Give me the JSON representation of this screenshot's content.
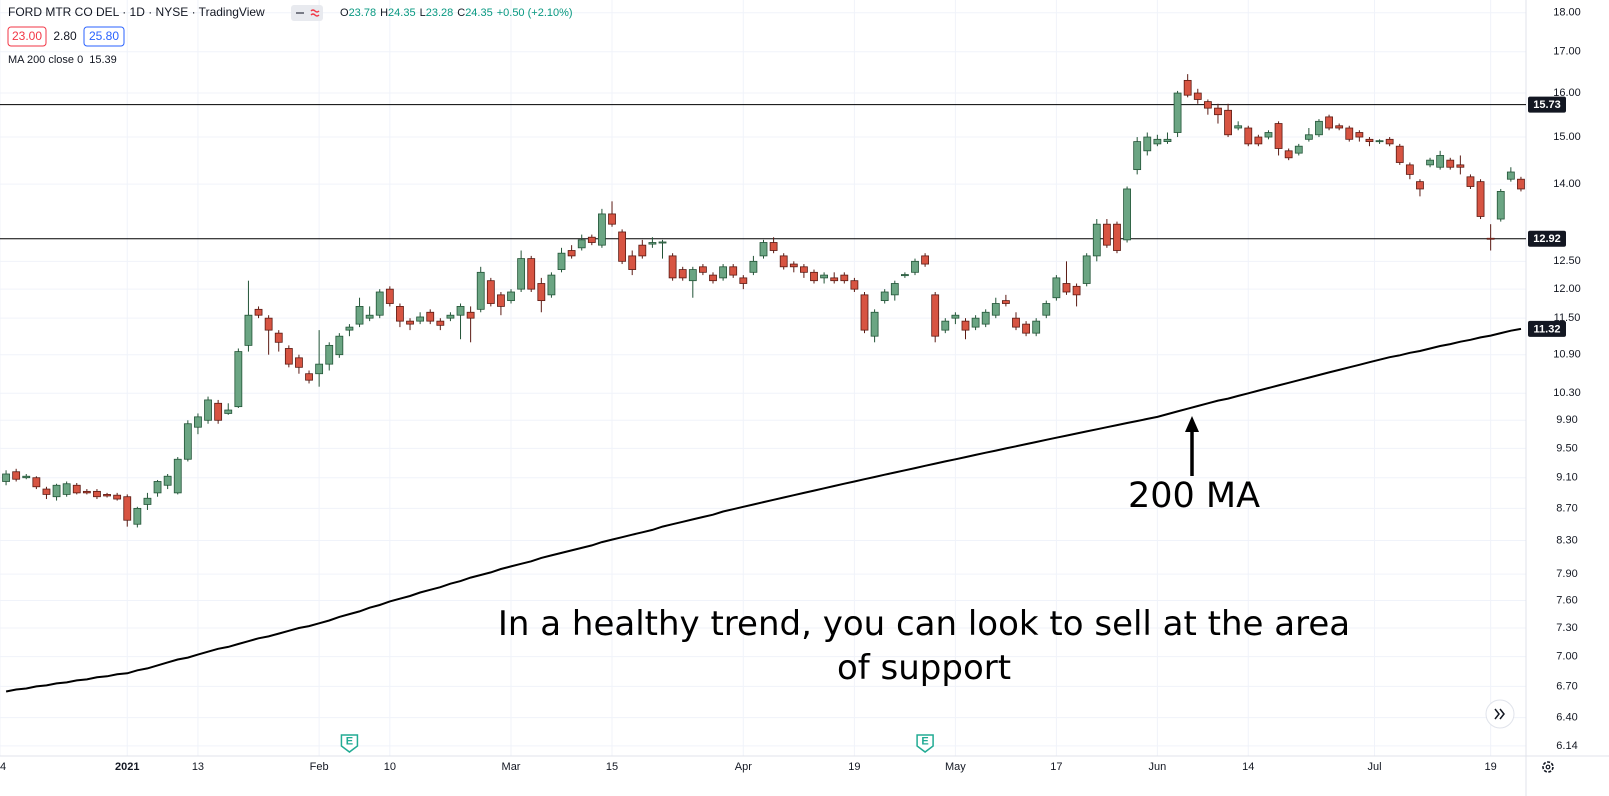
{
  "chart_data": {
    "type": "candlestick",
    "title": "FORD MTR CO DEL · 1D · NYSE · TradingView",
    "ohlc_legend": [
      {
        "key": "O",
        "value": "23.78"
      },
      {
        "key": "H",
        "value": "24.35"
      },
      {
        "key": "L",
        "value": "23.28"
      },
      {
        "key": "C",
        "value": "24.35"
      }
    ],
    "change": "+0.50 (+2.10%)",
    "quote_boxes": [
      "23.00",
      "2.80",
      "25.80"
    ],
    "indicator": {
      "name": "MA 200 close 0",
      "value_label": "15.39"
    },
    "log_scale": true,
    "grid": true,
    "ylim": [
      6.05,
      18.34
    ],
    "yticks": [
      {
        "value": 18,
        "label": "18.00"
      },
      {
        "value": 17,
        "label": "17.00"
      },
      {
        "value": 16,
        "label": "16.00"
      },
      {
        "value": 15,
        "label": "15.00"
      },
      {
        "value": 14,
        "label": "14.00"
      },
      {
        "value": 12.5,
        "label": "12.50"
      },
      {
        "value": 12,
        "label": "12.00"
      },
      {
        "value": 11.5,
        "label": "11.50"
      },
      {
        "value": 10.9,
        "label": "10.90"
      },
      {
        "value": 10.3,
        "label": "10.30"
      },
      {
        "value": 9.9,
        "label": "9.90"
      },
      {
        "value": 9.5,
        "label": "9.50"
      },
      {
        "value": 9.1,
        "label": "9.10"
      },
      {
        "value": 8.7,
        "label": "8.70"
      },
      {
        "value": 8.3,
        "label": "8.30"
      },
      {
        "value": 7.9,
        "label": "7.90"
      },
      {
        "value": 7.6,
        "label": "7.60"
      },
      {
        "value": 7.3,
        "label": "7.30"
      },
      {
        "value": 7,
        "label": "7.00"
      },
      {
        "value": 6.7,
        "label": "6.70"
      },
      {
        "value": 6.4,
        "label": "6.40"
      },
      6.14
    ],
    "xlim": [
      -0.6,
      150.5
    ],
    "xticks": [
      {
        "value": -0.6,
        "label": "4"
      },
      {
        "value": 12,
        "label": "2021"
      },
      {
        "value": 19,
        "label": "13"
      },
      {
        "value": 31,
        "label": "Feb"
      },
      {
        "value": 38,
        "label": "10"
      },
      {
        "value": 50,
        "label": "Mar"
      },
      {
        "value": 60,
        "label": "15"
      },
      {
        "value": 73,
        "label": "Apr"
      },
      {
        "value": 84,
        "label": "19"
      },
      {
        "value": 94,
        "label": "May"
      },
      {
        "value": 104,
        "label": "17"
      },
      {
        "value": 114,
        "label": "Jun"
      },
      {
        "value": 123,
        "label": "14"
      },
      {
        "value": 135.5,
        "label": "Jul"
      },
      {
        "value": 147,
        "label": "19"
      }
    ],
    "up_color": "#6ba583",
    "down_color": "#d75442",
    "candles": {
      "open": [
        9.05,
        9.18,
        9.1,
        9.1,
        8.95,
        8.85,
        8.88,
        9.0,
        8.92,
        8.92,
        8.88,
        8.87,
        8.85,
        8.5,
        8.75,
        8.9,
        9.0,
        8.9,
        9.35,
        9.8,
        9.9,
        10.15,
        10.0,
        10.1,
        11.05,
        11.65,
        11.5,
        11.25,
        11.0,
        10.85,
        10.6,
        10.6,
        10.75,
        10.9,
        11.3,
        11.4,
        11.5,
        11.55,
        12.0,
        11.7,
        11.45,
        11.45,
        11.6,
        11.45,
        11.5,
        11.55,
        11.6,
        11.65,
        12.15,
        11.9,
        11.8,
        12.0,
        12.55,
        12.1,
        11.9,
        12.35,
        12.7,
        12.75,
        12.95,
        12.8,
        13.4,
        13.05,
        12.6,
        12.8,
        12.82,
        12.84,
        12.6,
        12.35,
        12.15,
        12.4,
        12.25,
        12.2,
        12.4,
        12.2,
        12.3,
        12.6,
        12.85,
        12.6,
        12.45,
        12.4,
        12.3,
        12.2,
        12.2,
        12.25,
        12.15,
        11.9,
        11.2,
        11.8,
        11.9,
        12.24,
        12.3,
        12.6,
        11.9,
        11.3,
        11.5,
        11.45,
        11.35,
        11.4,
        11.55,
        11.8,
        11.5,
        11.4,
        11.25,
        11.55,
        11.85,
        12.1,
        12.05,
        12.1,
        12.6,
        13.2,
        13.2,
        12.9,
        14.3,
        14.7,
        14.85,
        14.9,
        15.1,
        16.3,
        16.0,
        15.8,
        15.65,
        15.6,
        15.2,
        15.2,
        15.0,
        15.0,
        15.3,
        14.7,
        14.65,
        14.95,
        15.05,
        15.45,
        15.25,
        15.2,
        15.1,
        14.95,
        14.9,
        14.95,
        14.8,
        14.4,
        14.05,
        14.4,
        14.35,
        14.5,
        14.4,
        14.15,
        14.05,
        12.93,
        13.3,
        14.1,
        14.1
      ],
      "high": [
        9.2,
        9.22,
        9.15,
        9.12,
        8.98,
        9.02,
        9.05,
        9.03,
        8.95,
        8.95,
        8.9,
        8.9,
        8.88,
        8.72,
        8.9,
        9.07,
        9.15,
        9.38,
        9.9,
        10.0,
        10.25,
        10.2,
        10.15,
        11.0,
        12.15,
        11.7,
        11.55,
        11.3,
        11.05,
        10.9,
        10.65,
        11.3,
        11.1,
        11.25,
        11.4,
        11.85,
        11.7,
        12.0,
        12.05,
        11.75,
        11.5,
        11.6,
        11.65,
        11.5,
        11.6,
        11.75,
        11.7,
        12.4,
        12.2,
        11.95,
        12.0,
        12.7,
        12.6,
        12.2,
        12.3,
        12.75,
        12.8,
        13.0,
        13.0,
        13.5,
        13.65,
        13.1,
        12.7,
        12.9,
        12.95,
        12.9,
        12.65,
        12.4,
        12.4,
        12.45,
        12.3,
        12.45,
        12.45,
        12.25,
        12.6,
        12.9,
        12.95,
        12.65,
        12.5,
        12.45,
        12.35,
        12.3,
        12.3,
        12.3,
        12.2,
        11.95,
        11.65,
        12.0,
        12.15,
        12.3,
        12.55,
        12.65,
        11.95,
        11.5,
        11.6,
        11.5,
        11.55,
        11.65,
        11.85,
        11.9,
        11.6,
        11.45,
        11.5,
        11.8,
        12.25,
        12.5,
        12.1,
        12.65,
        13.3,
        13.3,
        13.25,
        13.95,
        15.0,
        15.1,
        15.05,
        15.1,
        16.05,
        16.45,
        16.1,
        15.85,
        15.75,
        15.75,
        15.35,
        15.25,
        15.05,
        15.15,
        15.35,
        14.75,
        14.85,
        15.2,
        15.4,
        15.5,
        15.3,
        15.25,
        15.15,
        15.0,
        14.95,
        15.0,
        14.85,
        14.45,
        14.1,
        14.55,
        14.7,
        14.55,
        14.6,
        14.2,
        14.1,
        13.2,
        13.9,
        14.35,
        14.15
      ],
      "low": [
        9.0,
        9.05,
        9.08,
        8.95,
        8.82,
        8.8,
        8.85,
        8.88,
        8.88,
        8.82,
        8.84,
        8.8,
        8.47,
        8.46,
        8.68,
        8.85,
        8.95,
        8.88,
        9.32,
        9.7,
        9.85,
        9.85,
        9.98,
        10.08,
        10.95,
        11.5,
        10.9,
        10.95,
        10.7,
        10.6,
        10.45,
        10.4,
        10.65,
        10.85,
        11.2,
        11.35,
        11.45,
        11.5,
        11.7,
        11.35,
        11.3,
        11.4,
        11.4,
        11.3,
        11.45,
        11.15,
        11.1,
        11.6,
        11.7,
        11.55,
        11.75,
        11.95,
        11.95,
        11.6,
        11.85,
        12.3,
        12.55,
        12.7,
        12.8,
        12.75,
        13.15,
        12.45,
        12.25,
        12.55,
        12.75,
        12.55,
        12.15,
        12.15,
        11.85,
        12.25,
        12.1,
        12.15,
        12.2,
        12.0,
        12.25,
        12.55,
        12.65,
        12.35,
        12.3,
        12.2,
        12.1,
        12.1,
        12.1,
        12.1,
        11.95,
        11.25,
        11.1,
        11.75,
        11.8,
        12.2,
        12.25,
        12.4,
        11.1,
        11.25,
        11.4,
        11.15,
        11.3,
        11.35,
        11.5,
        11.7,
        11.3,
        11.2,
        11.2,
        11.5,
        11.8,
        11.9,
        11.7,
        12.05,
        12.5,
        12.75,
        12.65,
        12.85,
        14.2,
        14.6,
        14.8,
        14.85,
        15.0,
        15.9,
        15.75,
        15.5,
        15.3,
        15.0,
        15.15,
        14.8,
        14.8,
        14.95,
        14.6,
        14.5,
        14.6,
        14.9,
        15.0,
        15.15,
        15.15,
        14.9,
        14.9,
        14.8,
        14.85,
        14.8,
        14.4,
        14.1,
        13.75,
        14.35,
        14.3,
        14.3,
        14.2,
        13.9,
        13.3,
        12.7,
        13.25,
        14.05,
        13.85
      ],
      "close": [
        9.15,
        9.08,
        9.12,
        8.98,
        8.88,
        9.0,
        9.02,
        8.9,
        8.9,
        8.85,
        8.86,
        8.82,
        8.55,
        8.7,
        8.83,
        9.05,
        9.12,
        9.35,
        9.85,
        9.95,
        10.2,
        9.9,
        10.05,
        10.95,
        11.55,
        11.55,
        11.3,
        11.1,
        10.75,
        10.7,
        10.5,
        10.75,
        11.05,
        11.2,
        11.35,
        11.7,
        11.55,
        11.95,
        11.75,
        11.45,
        11.4,
        11.52,
        11.45,
        11.38,
        11.55,
        11.7,
        11.5,
        12.3,
        11.75,
        11.7,
        11.95,
        12.55,
        12.0,
        11.8,
        12.25,
        12.65,
        12.6,
        12.9,
        12.85,
        13.4,
        13.2,
        12.5,
        12.35,
        12.6,
        12.85,
        12.86,
        12.2,
        12.2,
        12.35,
        12.3,
        12.15,
        12.4,
        12.25,
        12.1,
        12.5,
        12.85,
        12.7,
        12.4,
        12.4,
        12.3,
        12.15,
        12.25,
        12.15,
        12.15,
        12.0,
        11.3,
        11.6,
        11.95,
        12.1,
        12.26,
        12.5,
        12.45,
        11.2,
        11.45,
        11.55,
        11.3,
        11.5,
        11.6,
        11.75,
        11.75,
        11.35,
        11.25,
        11.45,
        11.75,
        12.2,
        11.95,
        11.9,
        12.6,
        13.2,
        12.8,
        12.7,
        13.9,
        14.9,
        15.0,
        14.95,
        14.95,
        16.0,
        15.95,
        15.85,
        15.65,
        15.5,
        15.05,
        15.25,
        14.85,
        14.85,
        15.1,
        14.75,
        14.55,
        14.8,
        15.05,
        15.35,
        15.2,
        15.2,
        14.95,
        15.0,
        14.9,
        14.92,
        14.85,
        14.45,
        14.2,
        13.9,
        14.5,
        14.6,
        14.35,
        14.35,
        13.95,
        13.35,
        12.92,
        13.85,
        14.25,
        13.9
      ]
    },
    "ma": {
      "color": "#000000",
      "values": [
        6.65,
        6.67,
        6.68,
        6.7,
        6.71,
        6.73,
        6.74,
        6.76,
        6.77,
        6.79,
        6.8,
        6.82,
        6.83,
        6.86,
        6.88,
        6.91,
        6.94,
        6.97,
        6.99,
        7.02,
        7.05,
        7.08,
        7.1,
        7.13,
        7.16,
        7.19,
        7.21,
        7.24,
        7.27,
        7.3,
        7.32,
        7.35,
        7.38,
        7.42,
        7.45,
        7.48,
        7.52,
        7.55,
        7.59,
        7.62,
        7.65,
        7.69,
        7.72,
        7.75,
        7.79,
        7.82,
        7.86,
        7.89,
        7.92,
        7.96,
        7.99,
        8.02,
        8.05,
        8.09,
        8.12,
        8.15,
        8.18,
        8.21,
        8.24,
        8.28,
        8.31,
        8.34,
        8.37,
        8.4,
        8.43,
        8.47,
        8.5,
        8.53,
        8.56,
        8.59,
        8.62,
        8.66,
        8.69,
        8.72,
        8.75,
        8.78,
        8.81,
        8.84,
        8.87,
        8.9,
        8.93,
        8.96,
        8.99,
        9.02,
        9.05,
        9.08,
        9.11,
        9.14,
        9.17,
        9.2,
        9.23,
        9.26,
        9.29,
        9.32,
        9.35,
        9.38,
        9.41,
        9.44,
        9.47,
        9.5,
        9.53,
        9.56,
        9.59,
        9.62,
        9.65,
        9.68,
        9.71,
        9.74,
        9.77,
        9.8,
        9.83,
        9.86,
        9.89,
        9.92,
        9.95,
        9.99,
        10.03,
        10.07,
        10.11,
        10.15,
        10.19,
        10.22,
        10.26,
        10.3,
        10.34,
        10.38,
        10.42,
        10.46,
        10.5,
        10.54,
        10.58,
        10.62,
        10.66,
        10.7,
        10.74,
        10.78,
        10.82,
        10.86,
        10.89,
        10.93,
        10.96,
        11.0,
        11.04,
        11.07,
        11.11,
        11.14,
        11.18,
        11.21,
        11.25,
        11.29,
        11.32
      ]
    },
    "hlines": [
      15.73,
      12.92
    ],
    "hline_color": "#000000",
    "events": [
      {
        "x": 34,
        "label": "E"
      },
      {
        "x": 91,
        "label": "E"
      }
    ],
    "annotations": [
      {
        "text": "200 MA"
      },
      {
        "text": "In a healthy trend, you can look to sell at the area of support"
      }
    ]
  }
}
